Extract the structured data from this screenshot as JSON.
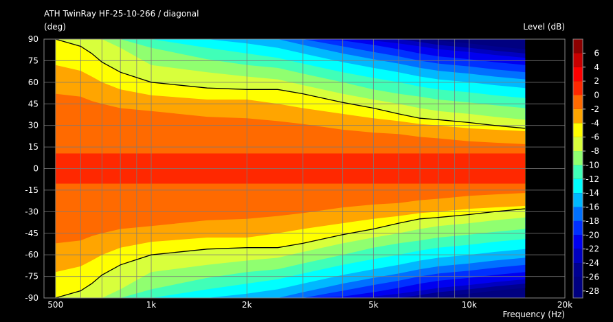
{
  "chart_data": {
    "type": "heatmap",
    "title": "ATH TwinRay HF-25-10-266 / diagonal",
    "ylabel": "(deg)",
    "xlabel": "Frequency  (Hz)",
    "colorbar_label": "Level  (dB)",
    "x_scale": "log",
    "xlim": [
      460,
      20000
    ],
    "ylim": [
      -90,
      90
    ],
    "data_x_range": [
      500,
      15000
    ],
    "x_ticks": [
      {
        "value": 500,
        "label": "500"
      },
      {
        "value": 1000,
        "label": "1k"
      },
      {
        "value": 2000,
        "label": "2k"
      },
      {
        "value": 5000,
        "label": "5k"
      },
      {
        "value": 10000,
        "label": "10k"
      },
      {
        "value": 20000,
        "label": "20k"
      }
    ],
    "x_minor_grid": [
      600,
      700,
      800,
      900,
      3000,
      4000,
      6000,
      7000,
      8000,
      9000
    ],
    "y_ticks": [
      90,
      75,
      60,
      45,
      30,
      15,
      0,
      -15,
      -30,
      -45,
      -60,
      -75,
      -90
    ],
    "colorbar": {
      "levels": [
        6,
        4,
        2,
        0,
        -2,
        -4,
        -6,
        -8,
        -10,
        -12,
        -14,
        -16,
        -18,
        -20,
        -22,
        -24,
        -26,
        -28
      ],
      "range": [
        -29,
        8
      ]
    },
    "grid": true,
    "contour_frequencies": [
      500,
      600,
      650,
      700,
      800,
      1000,
      1500,
      2000,
      2500,
      3000,
      4000,
      5000,
      6000,
      7000,
      8000,
      10000,
      12000,
      15000
    ],
    "contour_boundaries": [
      {
        "level": 0,
        "angles": [
          10.5,
          10.5,
          10.5,
          10.5,
          10.5,
          10.5,
          10.5,
          10.5,
          10.5,
          10.5,
          10.5,
          10.5,
          10.5,
          10.5,
          10.5,
          10.5,
          10.5,
          10.5
        ]
      },
      {
        "level": -2,
        "angles": [
          52,
          50,
          47,
          45,
          42,
          40,
          36,
          35,
          33,
          31,
          27,
          25,
          24,
          22,
          21,
          19,
          18,
          17
        ]
      },
      {
        "level": -4,
        "angles": [
          72,
          68,
          64,
          60,
          55,
          51,
          48,
          48,
          45,
          42,
          38,
          35,
          33,
          31,
          30,
          28,
          27,
          26
        ]
      },
      {
        "level": -6,
        "angles": [
          90,
          85,
          80,
          74,
          67,
          60,
          56,
          55,
          55,
          52,
          46,
          42,
          38,
          35,
          34,
          32,
          30,
          28
        ]
      },
      {
        "level": -8,
        "angles": [
          91,
          91,
          91,
          90,
          84,
          72,
          67,
          64,
          62,
          58,
          52,
          48,
          45,
          42,
          40,
          38,
          36,
          34
        ]
      },
      {
        "level": -10,
        "angles": [
          91,
          91,
          91,
          91,
          91,
          84,
          76,
          72,
          70,
          66,
          60,
          55,
          52,
          50,
          48,
          46,
          44,
          42
        ]
      },
      {
        "level": -12,
        "angles": [
          91,
          91,
          91,
          91,
          91,
          91,
          84,
          80,
          77,
          73,
          67,
          63,
          60,
          57,
          55,
          53,
          51,
          49
        ]
      },
      {
        "level": -14,
        "angles": [
          91,
          91,
          91,
          91,
          91,
          91,
          90,
          87,
          84,
          80,
          74,
          70,
          67,
          64,
          62,
          60,
          58,
          56
        ]
      },
      {
        "level": -16,
        "angles": [
          91,
          91,
          91,
          91,
          91,
          91,
          91,
          91,
          90,
          86,
          80,
          76,
          73,
          70,
          68,
          66,
          64,
          62
        ]
      },
      {
        "level": -18,
        "angles": [
          91,
          91,
          91,
          91,
          91,
          91,
          91,
          91,
          91,
          90,
          85,
          81,
          78,
          75,
          73,
          71,
          69,
          67
        ]
      },
      {
        "level": -20,
        "angles": [
          91,
          91,
          91,
          91,
          91,
          91,
          91,
          91,
          91,
          91,
          89,
          86,
          83,
          80,
          78,
          76,
          74,
          72
        ]
      },
      {
        "level": -22,
        "angles": [
          91,
          91,
          91,
          91,
          91,
          91,
          91,
          91,
          91,
          91,
          91,
          89,
          87,
          85,
          83,
          81,
          79,
          77
        ]
      },
      {
        "level": -24,
        "angles": [
          91,
          91,
          91,
          91,
          91,
          91,
          91,
          91,
          91,
          91,
          91,
          91,
          90,
          88,
          86,
          84,
          82,
          80
        ]
      },
      {
        "level": -26,
        "angles": [
          91,
          91,
          91,
          91,
          91,
          91,
          91,
          91,
          91,
          91,
          91,
          91,
          91,
          90,
          89,
          87,
          85,
          83
        ]
      }
    ],
    "minus6db_isoline": {
      "frequencies": [
        500,
        600,
        650,
        700,
        800,
        1000,
        1500,
        2000,
        2500,
        3000,
        4000,
        5000,
        6000,
        7000,
        8000,
        10000,
        12000,
        15000
      ],
      "angles": [
        90,
        85,
        80,
        74,
        67,
        60,
        56,
        55,
        55,
        52,
        46,
        42,
        38,
        35,
        34,
        32,
        30,
        28
      ]
    }
  }
}
